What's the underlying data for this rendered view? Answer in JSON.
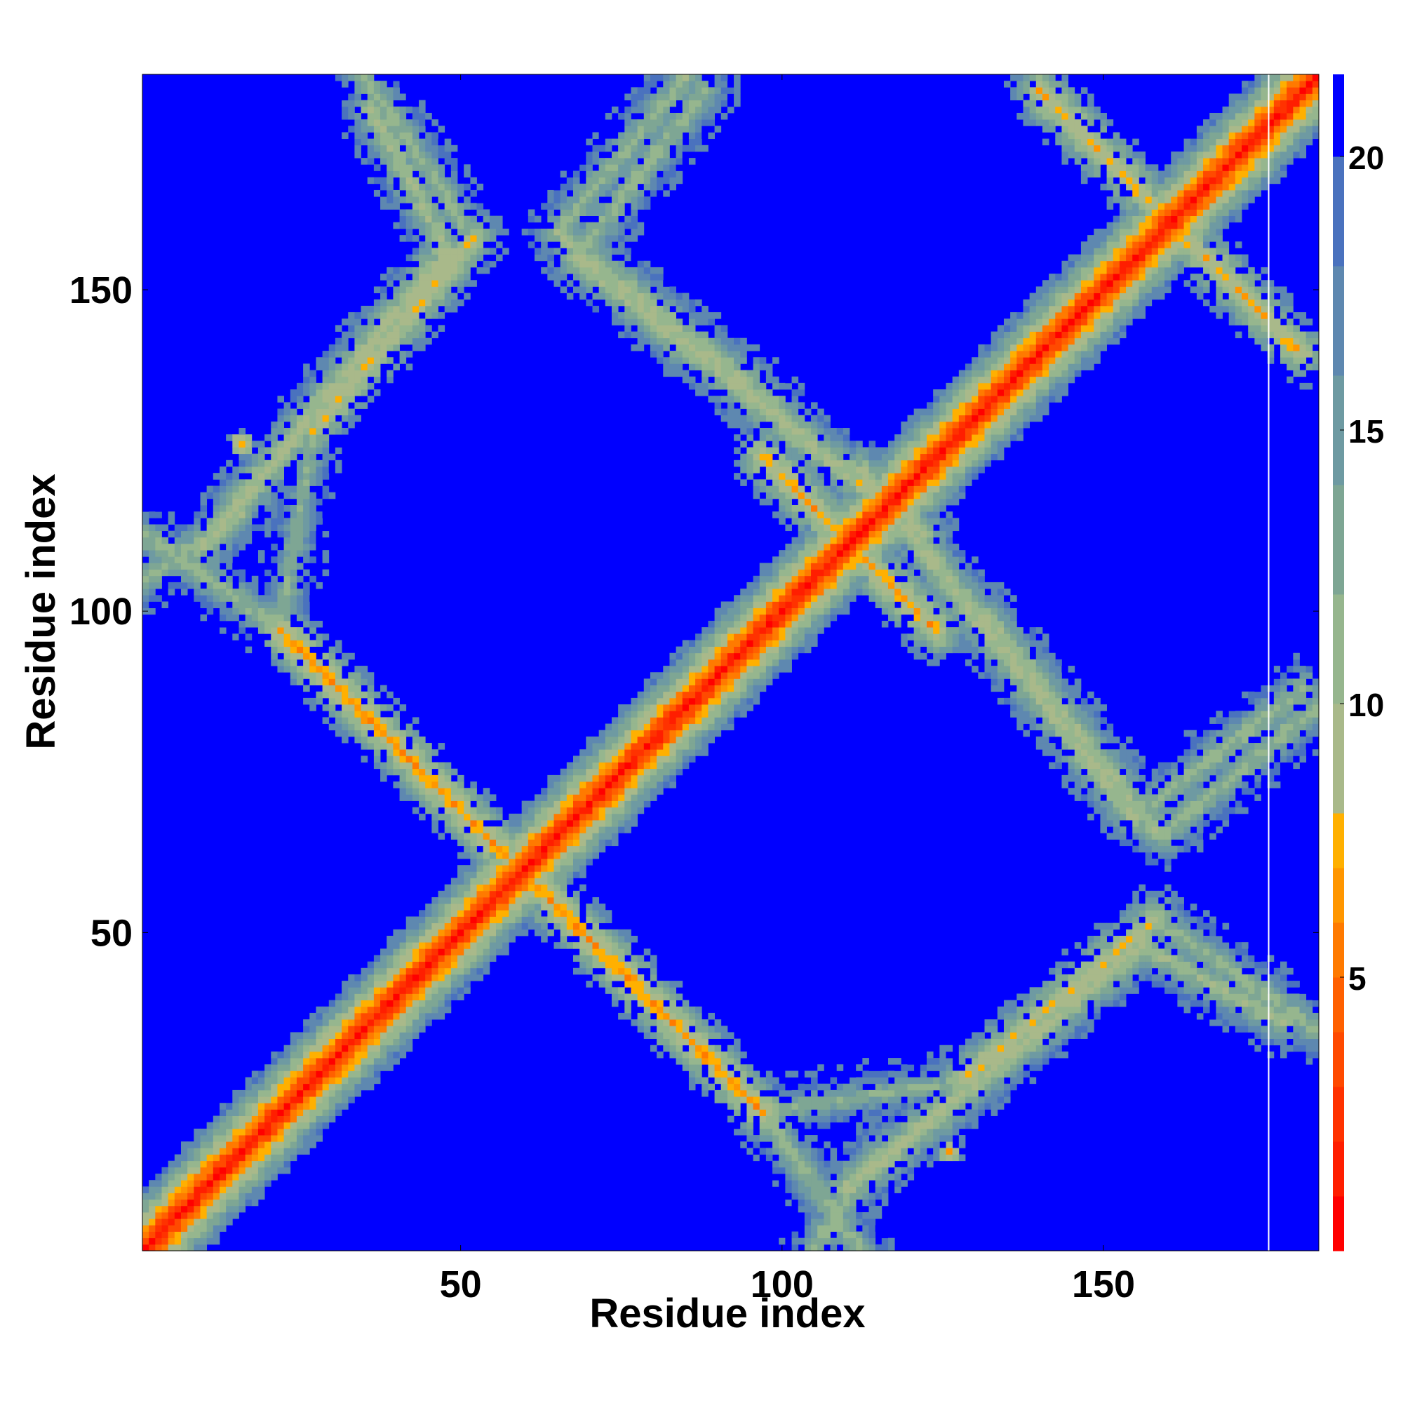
{
  "chart_data": {
    "type": "heatmap",
    "title": "",
    "xlabel": "Residue index",
    "ylabel": "Residue index",
    "n_residues": 183,
    "x_range": [
      1,
      183
    ],
    "y_range": [
      1,
      183
    ],
    "x_ticks": [
      50,
      100,
      150
    ],
    "y_ticks": [
      50,
      100,
      150
    ],
    "colorbar": {
      "ticks": [
        5,
        10,
        15,
        20
      ],
      "range": [
        0,
        21.5
      ],
      "levels": [
        {
          "max": 1,
          "color": "#ff0000"
        },
        {
          "max": 2,
          "color": "#ff1e00"
        },
        {
          "max": 3,
          "color": "#ff3200"
        },
        {
          "max": 4,
          "color": "#ff4a00"
        },
        {
          "max": 5,
          "color": "#ff6000"
        },
        {
          "max": 6,
          "color": "#ff7a00"
        },
        {
          "max": 7,
          "color": "#ff9600"
        },
        {
          "max": 8,
          "color": "#ffb000"
        },
        {
          "max": 10,
          "color": "#a9b98a"
        },
        {
          "max": 12,
          "color": "#96b68e"
        },
        {
          "max": 14,
          "color": "#7ea694"
        },
        {
          "max": 16,
          "color": "#6e9aa2"
        },
        {
          "max": 18,
          "color": "#5e88b0"
        },
        {
          "max": 20,
          "color": "#4a72be"
        },
        {
          "max": 21.5,
          "color": "#0000ff"
        }
      ]
    },
    "cell_value_meaning": "distance",
    "background_value": 21.5,
    "features": [
      {
        "kind": "diagonal",
        "from": [
          1,
          1
        ],
        "to": [
          183,
          183
        ],
        "core_value": 1
      },
      {
        "kind": "antiparallel-band",
        "from": [
          22,
          97
        ],
        "to": [
          97,
          22
        ],
        "core_value": 6.5
      },
      {
        "kind": "antiparallel-band",
        "from": [
          97,
          22
        ],
        "to": [
          22,
          97
        ],
        "core_value": 6.5
      },
      {
        "kind": "antiparallel-band",
        "from": [
          97,
          124
        ],
        "to": [
          124,
          97
        ],
        "core_value": 7
      },
      {
        "kind": "antiparallel-band",
        "from": [
          124,
          97
        ],
        "to": [
          97,
          124
        ],
        "core_value": 7
      },
      {
        "kind": "antiparallel-band",
        "from": [
          140,
          181
        ],
        "to": [
          181,
          140
        ],
        "core_value": 7.5
      },
      {
        "kind": "antiparallel-band",
        "from": [
          181,
          140
        ],
        "to": [
          140,
          181
        ],
        "core_value": 7.5
      },
      {
        "kind": "parallel-band",
        "from": [
          1,
          112
        ],
        "to": [
          22,
          97
        ],
        "core_value": 11
      },
      {
        "kind": "parallel-band",
        "from": [
          112,
          1
        ],
        "to": [
          97,
          22
        ],
        "core_value": 11
      },
      {
        "kind": "parallel-band",
        "from": [
          22,
          97
        ],
        "to": [
          27,
          128
        ],
        "core_value": 12
      },
      {
        "kind": "parallel-band",
        "from": [
          97,
          22
        ],
        "to": [
          128,
          27
        ],
        "core_value": 12
      },
      {
        "kind": "antiparallel-band",
        "from": [
          27,
          128
        ],
        "to": [
          52,
          158
        ],
        "core_value": 8
      },
      {
        "kind": "antiparallel-band",
        "from": [
          128,
          27
        ],
        "to": [
          158,
          52
        ],
        "core_value": 8
      },
      {
        "kind": "parallel-band",
        "from": [
          52,
          158
        ],
        "to": [
          35,
          183
        ],
        "core_value": 11
      },
      {
        "kind": "parallel-band",
        "from": [
          158,
          52
        ],
        "to": [
          183,
          35
        ],
        "core_value": 11
      },
      {
        "kind": "parallel-band",
        "from": [
          105,
          1
        ],
        "to": [
          115,
          16
        ],
        "core_value": 11
      },
      {
        "kind": "parallel-band",
        "from": [
          1,
          105
        ],
        "to": [
          16,
          115
        ],
        "core_value": 11
      },
      {
        "kind": "parallel-band",
        "from": [
          110,
          10
        ],
        "to": [
          156,
          48
        ],
        "core_value": 9
      },
      {
        "kind": "parallel-band",
        "from": [
          10,
          110
        ],
        "to": [
          48,
          156
        ],
        "core_value": 9
      },
      {
        "kind": "parallel-band",
        "from": [
          156,
          48
        ],
        "to": [
          178,
          36
        ],
        "core_value": 10
      },
      {
        "kind": "parallel-band",
        "from": [
          48,
          156
        ],
        "to": [
          36,
          178
        ],
        "core_value": 10
      },
      {
        "kind": "parallel-band",
        "from": [
          112,
          122
        ],
        "to": [
          155,
          68
        ],
        "core_value": 9
      },
      {
        "kind": "parallel-band",
        "from": [
          122,
          112
        ],
        "to": [
          68,
          155
        ],
        "core_value": 9
      },
      {
        "kind": "parallel-band",
        "from": [
          155,
          68
        ],
        "to": [
          181,
          88
        ],
        "core_value": 11
      },
      {
        "kind": "parallel-band",
        "from": [
          68,
          155
        ],
        "to": [
          88,
          181
        ],
        "core_value": 11
      },
      {
        "kind": "parallel-band",
        "from": [
          99,
          132
        ],
        "to": [
          65,
          159
        ],
        "core_value": 10
      },
      {
        "kind": "parallel-band",
        "from": [
          132,
          99
        ],
        "to": [
          159,
          65
        ],
        "core_value": 10
      },
      {
        "kind": "parallel-band",
        "from": [
          65,
          159
        ],
        "to": [
          85,
          183
        ],
        "core_value": 11
      },
      {
        "kind": "parallel-band",
        "from": [
          159,
          65
        ],
        "to": [
          183,
          85
        ],
        "core_value": 11
      },
      {
        "kind": "spot",
        "at": [
          126,
          16
        ],
        "core_value": 6
      },
      {
        "kind": "spot",
        "at": [
          16,
          126
        ],
        "core_value": 6
      }
    ]
  }
}
